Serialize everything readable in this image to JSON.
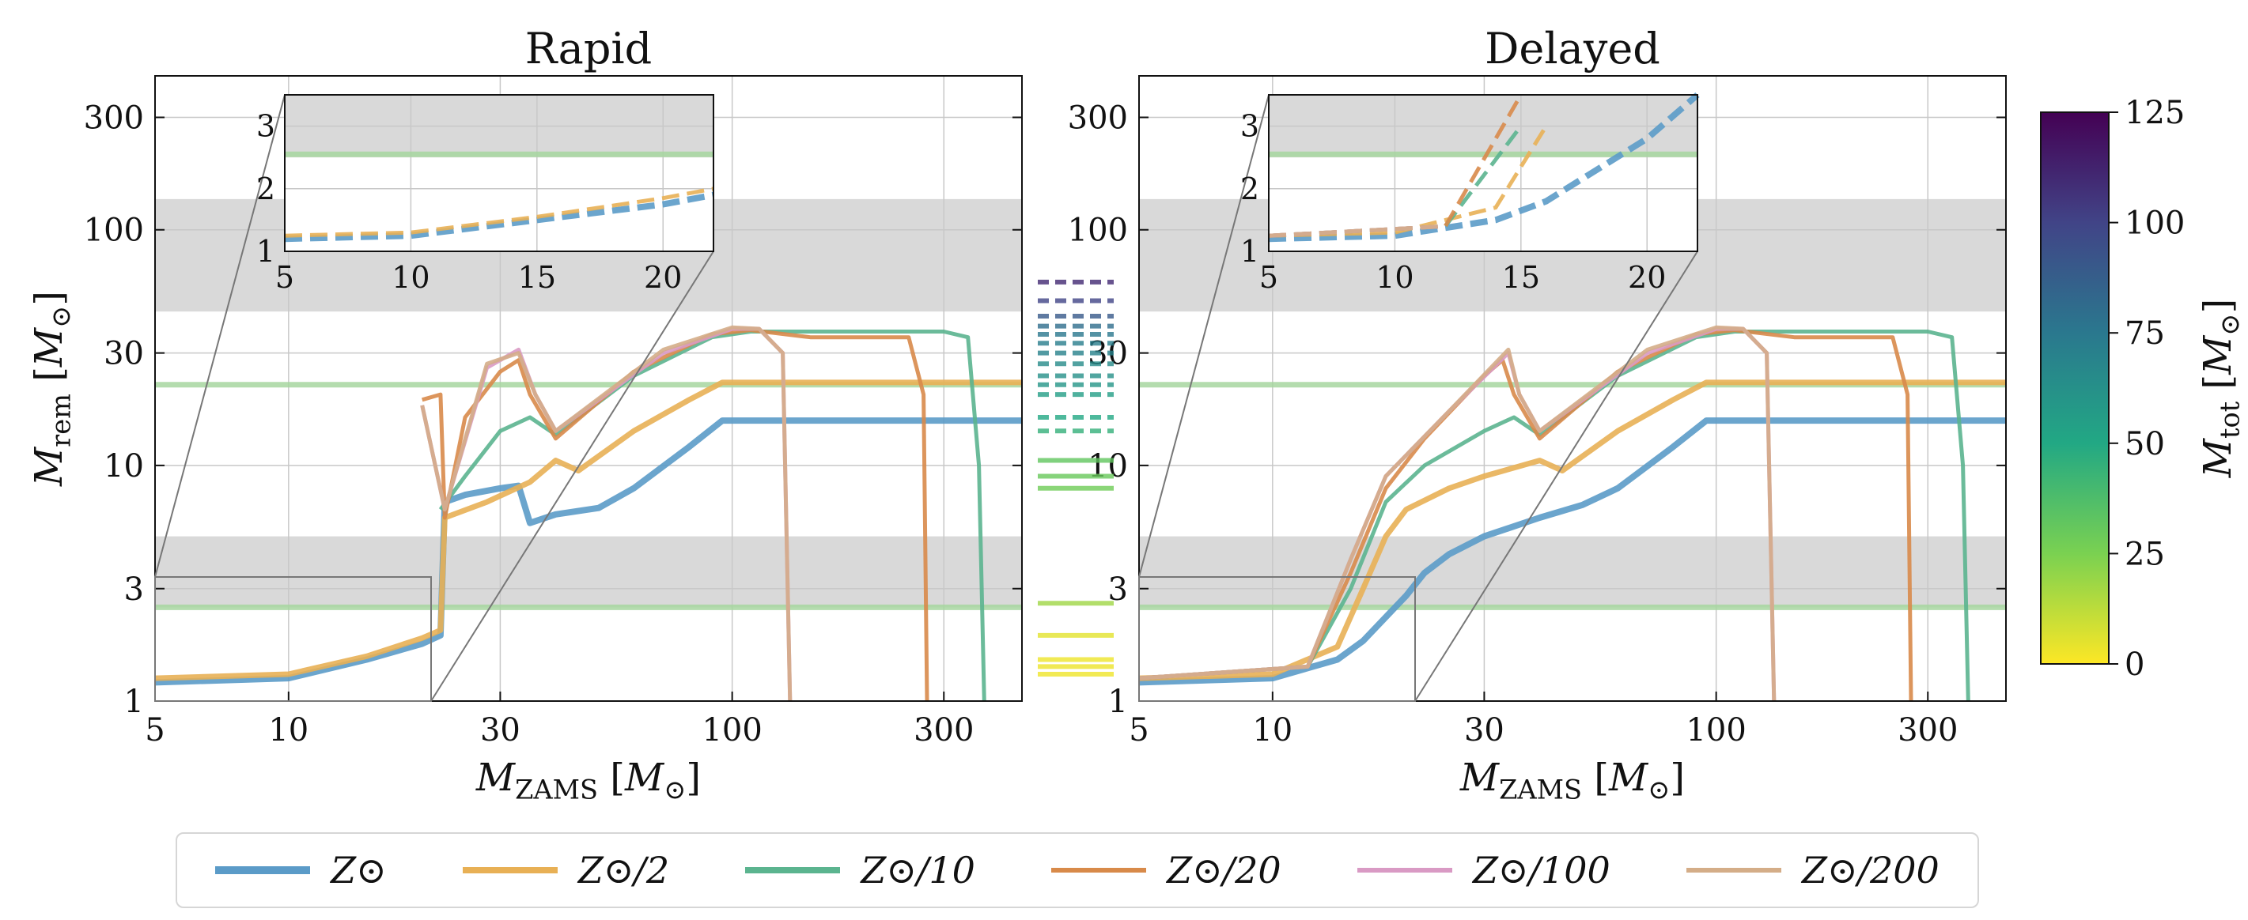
{
  "chart_data": [
    {
      "type": "line",
      "title": "Rapid",
      "xlabel": "M_ZAMS [M_⊙]",
      "ylabel": "M_rem [M_⊙]",
      "xscale": "log",
      "yscale": "log",
      "xlim": [
        5,
        450
      ],
      "ylim": [
        1,
        450
      ],
      "xticks": [
        5,
        10,
        30,
        100,
        300
      ],
      "yticks": [
        1,
        3,
        10,
        30,
        100,
        300
      ],
      "grid": true,
      "shaded_y_bands": [
        [
          2.5,
          5
        ],
        [
          45,
          135
        ]
      ],
      "reference_lines_y": [
        2.5,
        22
      ],
      "series": [
        {
          "name": "Z⊙",
          "points": [
            [
              5,
              1.2
            ],
            [
              10,
              1.25
            ],
            [
              15,
              1.5
            ],
            [
              20,
              1.75
            ],
            [
              22,
              1.9
            ],
            [
              22.5,
              7
            ],
            [
              25,
              7.5
            ],
            [
              30,
              8
            ],
            [
              33,
              8.2
            ],
            [
              35,
              5.7
            ],
            [
              40,
              6.2
            ],
            [
              50,
              6.6
            ],
            [
              60,
              8
            ],
            [
              80,
              12
            ],
            [
              95,
              15.5
            ],
            [
              110,
              15.5
            ],
            [
              200,
              15.5
            ],
            [
              300,
              15.5
            ],
            [
              450,
              15.5
            ]
          ]
        },
        {
          "name": "Z⊙/2",
          "points": [
            [
              5,
              1.25
            ],
            [
              10,
              1.3
            ],
            [
              15,
              1.55
            ],
            [
              20,
              1.85
            ],
            [
              22,
              2
            ],
            [
              22.5,
              6
            ],
            [
              28,
              7
            ],
            [
              35,
              8.5
            ],
            [
              40,
              10.5
            ],
            [
              45,
              9.5
            ],
            [
              60,
              14
            ],
            [
              80,
              19
            ],
            [
              95,
              22.5
            ],
            [
              150,
              22.5
            ],
            [
              300,
              22.5
            ],
            [
              450,
              22.5
            ]
          ]
        },
        {
          "name": "Z⊙/10",
          "points": [
            [
              22,
              6.5
            ],
            [
              25,
              9
            ],
            [
              30,
              14
            ],
            [
              35,
              16
            ],
            [
              40,
              13.5
            ],
            [
              60,
              24
            ],
            [
              90,
              35
            ],
            [
              110,
              37
            ],
            [
              200,
              37
            ],
            [
              300,
              37
            ],
            [
              340,
              35
            ],
            [
              360,
              10
            ],
            [
              370,
              1
            ]
          ]
        },
        {
          "name": "Z⊙/20",
          "points": [
            [
              20,
              19
            ],
            [
              22,
              20
            ],
            [
              22.5,
              6
            ],
            [
              25,
              16
            ],
            [
              30,
              25
            ],
            [
              33,
              28
            ],
            [
              35,
              20
            ],
            [
              40,
              13
            ],
            [
              60,
              25
            ],
            [
              90,
              36
            ],
            [
              110,
              37.5
            ],
            [
              150,
              35
            ],
            [
              250,
              35
            ],
            [
              270,
              20
            ],
            [
              275,
              1
            ]
          ]
        },
        {
          "name": "Z⊙/100",
          "points": [
            [
              20,
              18
            ],
            [
              22.5,
              6.5
            ],
            [
              28,
              26
            ],
            [
              33,
              31
            ],
            [
              36,
              20
            ],
            [
              40,
              14
            ],
            [
              70,
              30
            ],
            [
              100,
              38
            ],
            [
              115,
              38
            ],
            [
              130,
              30
            ],
            [
              135,
              1
            ]
          ]
        },
        {
          "name": "Z⊙/200",
          "points": [
            [
              20,
              18
            ],
            [
              22.5,
              6.5
            ],
            [
              28,
              27
            ],
            [
              33,
              30
            ],
            [
              36,
              20
            ],
            [
              40,
              14
            ],
            [
              70,
              31
            ],
            [
              100,
              38.5
            ],
            [
              115,
              38
            ],
            [
              130,
              30
            ],
            [
              135,
              1
            ]
          ]
        }
      ],
      "inset": {
        "xlim": [
          5,
          22
        ],
        "ylim": [
          1,
          3.5
        ],
        "xticks": [
          5,
          10,
          15,
          20
        ],
        "yticks": [
          1,
          2,
          3
        ]
      }
    },
    {
      "type": "line",
      "title": "Delayed",
      "xlabel": "M_ZAMS [M_⊙]",
      "ylabel": "",
      "xscale": "log",
      "yscale": "log",
      "xlim": [
        5,
        450
      ],
      "ylim": [
        1,
        450
      ],
      "xticks": [
        5,
        10,
        30,
        100,
        300
      ],
      "yticks": [
        1,
        3,
        10,
        30,
        100,
        300
      ],
      "grid": true,
      "shaded_y_bands": [
        [
          2.5,
          5
        ],
        [
          45,
          135
        ]
      ],
      "reference_lines_y": [
        2.5,
        22
      ],
      "series": [
        {
          "name": "Z⊙",
          "points": [
            [
              5,
              1.2
            ],
            [
              10,
              1.25
            ],
            [
              14,
              1.5
            ],
            [
              16,
              1.8
            ],
            [
              20,
              2.8
            ],
            [
              22,
              3.5
            ],
            [
              25,
              4.2
            ],
            [
              30,
              5
            ],
            [
              40,
              6
            ],
            [
              50,
              6.8
            ],
            [
              60,
              8
            ],
            [
              80,
              12
            ],
            [
              95,
              15.5
            ],
            [
              200,
              15.5
            ],
            [
              450,
              15.5
            ]
          ]
        },
        {
          "name": "Z⊙/2",
          "points": [
            [
              5,
              1.25
            ],
            [
              10,
              1.3
            ],
            [
              14,
              1.7
            ],
            [
              16,
              3
            ],
            [
              18,
              5
            ],
            [
              20,
              6.5
            ],
            [
              25,
              8
            ],
            [
              30,
              9
            ],
            [
              40,
              10.5
            ],
            [
              45,
              9.5
            ],
            [
              60,
              14
            ],
            [
              80,
              19
            ],
            [
              95,
              22.5
            ],
            [
              300,
              22.5
            ],
            [
              450,
              22.5
            ]
          ]
        },
        {
          "name": "Z⊙/10",
          "points": [
            [
              5,
              1.25
            ],
            [
              12,
              1.4
            ],
            [
              15,
              3
            ],
            [
              18,
              7
            ],
            [
              22,
              10
            ],
            [
              30,
              14
            ],
            [
              35,
              16
            ],
            [
              40,
              13.5
            ],
            [
              60,
              24
            ],
            [
              90,
              35
            ],
            [
              110,
              37
            ],
            [
              300,
              37
            ],
            [
              340,
              35
            ],
            [
              360,
              10
            ],
            [
              370,
              1
            ]
          ]
        },
        {
          "name": "Z⊙/20",
          "points": [
            [
              5,
              1.25
            ],
            [
              12,
              1.4
            ],
            [
              15,
              3.5
            ],
            [
              18,
              8
            ],
            [
              22,
              13
            ],
            [
              30,
              24
            ],
            [
              33,
              28
            ],
            [
              35,
              20
            ],
            [
              40,
              13
            ],
            [
              60,
              25
            ],
            [
              90,
              36
            ],
            [
              110,
              37.5
            ],
            [
              150,
              35
            ],
            [
              250,
              35
            ],
            [
              270,
              20
            ],
            [
              275,
              1
            ]
          ]
        },
        {
          "name": "Z⊙/100",
          "points": [
            [
              5,
              1.25
            ],
            [
              12,
              1.4
            ],
            [
              15,
              4
            ],
            [
              18,
              9
            ],
            [
              25,
              17
            ],
            [
              34,
              30
            ],
            [
              36,
              20
            ],
            [
              40,
              14
            ],
            [
              70,
              30
            ],
            [
              100,
              38
            ],
            [
              115,
              38
            ],
            [
              130,
              30
            ],
            [
              135,
              1
            ]
          ]
        },
        {
          "name": "Z⊙/200",
          "points": [
            [
              5,
              1.25
            ],
            [
              12,
              1.4
            ],
            [
              15,
              4
            ],
            [
              18,
              9
            ],
            [
              25,
              17
            ],
            [
              34,
              31
            ],
            [
              36,
              20
            ],
            [
              40,
              14
            ],
            [
              70,
              31
            ],
            [
              100,
              38.5
            ],
            [
              115,
              38
            ],
            [
              130,
              30
            ],
            [
              135,
              1
            ]
          ]
        }
      ],
      "inset": {
        "xlim": [
          5,
          22
        ],
        "ylim": [
          1,
          3.5
        ],
        "xticks": [
          5,
          10,
          15,
          20
        ],
        "yticks": [
          1,
          2,
          3
        ]
      }
    }
  ],
  "colorbar": {
    "label": "M_tot [M_⊙]",
    "ticks": [
      0,
      25,
      50,
      75,
      100,
      125
    ],
    "range": [
      0,
      125
    ]
  },
  "series_colors": {
    "Z⊙": "#5b9bc8",
    "Z⊙/2": "#e8b055",
    "Z⊙/10": "#5bb48f",
    "Z⊙/20": "#d88a4a",
    "Z⊙/100": "#d99ac4",
    "Z⊙/200": "#d4ad88"
  },
  "legend": [
    {
      "label": "Z⊙",
      "color": "#5b9bc8"
    },
    {
      "label": "Z⊙/2",
      "color": "#e8b055"
    },
    {
      "label": "Z⊙/10",
      "color": "#5bb48f"
    },
    {
      "label": "Z⊙/20",
      "color": "#d88a4a"
    },
    {
      "label": "Z⊙/100",
      "color": "#d99ac4"
    },
    {
      "label": "Z⊙/200",
      "color": "#d4ad88"
    }
  ],
  "observations": [
    {
      "mass": 1.3,
      "mtot": 2.6
    },
    {
      "mass": 1.4,
      "mtot": 3
    },
    {
      "mass": 1.5,
      "mtot": 2.8
    },
    {
      "mass": 1.9,
      "mtot": 5
    },
    {
      "mass": 2.6,
      "mtot": 18
    },
    {
      "mass": 8,
      "mtot": 28
    },
    {
      "mass": 9,
      "mtot": 30
    },
    {
      "mass": 10.5,
      "mtot": 32
    },
    {
      "mass": 14,
      "mtot": 45
    },
    {
      "mass": 16,
      "mtot": 50
    },
    {
      "mass": 20,
      "mtot": 55
    },
    {
      "mass": 22,
      "mtot": 60
    },
    {
      "mass": 24,
      "mtot": 62
    },
    {
      "mass": 27,
      "mtot": 65
    },
    {
      "mass": 30,
      "mtot": 70
    },
    {
      "mass": 33,
      "mtot": 72
    },
    {
      "mass": 36,
      "mtot": 75
    },
    {
      "mass": 39,
      "mtot": 80
    },
    {
      "mass": 43,
      "mtot": 90
    },
    {
      "mass": 50,
      "mtot": 100
    },
    {
      "mass": 60,
      "mtot": 110
    }
  ]
}
